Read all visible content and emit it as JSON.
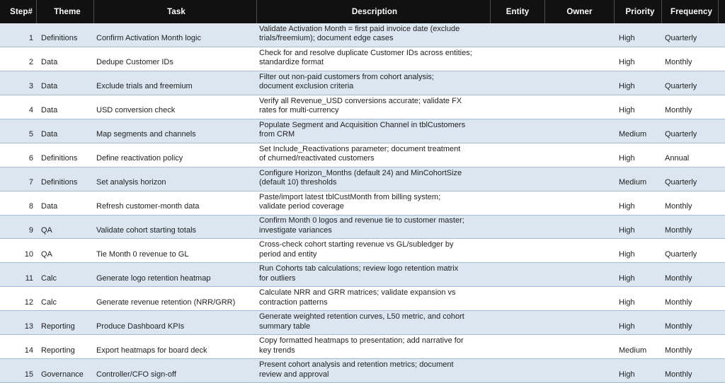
{
  "table": {
    "columns": [
      {
        "id": "step",
        "label": "Step#"
      },
      {
        "id": "theme",
        "label": "Theme"
      },
      {
        "id": "task",
        "label": "Task"
      },
      {
        "id": "description",
        "label": "Description"
      },
      {
        "id": "entity",
        "label": "Entity"
      },
      {
        "id": "owner",
        "label": "Owner"
      },
      {
        "id": "priority",
        "label": "Priority"
      },
      {
        "id": "frequency",
        "label": "Frequency"
      }
    ],
    "rows": [
      {
        "step": "1",
        "theme": "Definitions",
        "task": "Confirm Activation Month logic",
        "description": "Validate Activation Month = first paid invoice date (exclude\ntrials/freemium); document edge cases",
        "entity": "",
        "owner": "",
        "priority": "High",
        "frequency": "Quarterly"
      },
      {
        "step": "2",
        "theme": "Data",
        "task": "Dedupe Customer IDs",
        "description": "Check for and resolve duplicate Customer IDs across entities;\nstandardize format",
        "entity": "",
        "owner": "",
        "priority": "High",
        "frequency": "Monthly"
      },
      {
        "step": "3",
        "theme": "Data",
        "task": "Exclude trials and freemium",
        "description": "Filter out non-paid customers from cohort analysis;\ndocument exclusion criteria",
        "entity": "",
        "owner": "",
        "priority": "High",
        "frequency": "Quarterly"
      },
      {
        "step": "4",
        "theme": "Data",
        "task": "USD conversion check",
        "description": "Verify all Revenue_USD conversions accurate; validate FX\nrates for multi-currency",
        "entity": "",
        "owner": "",
        "priority": "High",
        "frequency": "Monthly"
      },
      {
        "step": "5",
        "theme": "Data",
        "task": "Map segments and channels",
        "description": "Populate Segment and Acquisition Channel in tblCustomers\nfrom CRM",
        "entity": "",
        "owner": "",
        "priority": "Medium",
        "frequency": "Quarterly"
      },
      {
        "step": "6",
        "theme": "Definitions",
        "task": "Define reactivation policy",
        "description": "Set Include_Reactivations parameter; document treatment\nof churned/reactivated customers",
        "entity": "",
        "owner": "",
        "priority": "High",
        "frequency": "Annual"
      },
      {
        "step": "7",
        "theme": "Definitions",
        "task": "Set analysis horizon",
        "description": "Configure Horizon_Months (default 24) and MinCohortSize\n(default 10) thresholds",
        "entity": "",
        "owner": "",
        "priority": "Medium",
        "frequency": "Quarterly"
      },
      {
        "step": "8",
        "theme": "Data",
        "task": "Refresh customer-month data",
        "description": "Paste/import latest tblCustMonth from billing system;\nvalidate period coverage",
        "entity": "",
        "owner": "",
        "priority": "High",
        "frequency": "Monthly"
      },
      {
        "step": "9",
        "theme": "QA",
        "task": "Validate cohort starting totals",
        "description": "Confirm Month 0 logos and revenue tie to customer master;\ninvestigate variances",
        "entity": "",
        "owner": "",
        "priority": "High",
        "frequency": "Monthly"
      },
      {
        "step": "10",
        "theme": "QA",
        "task": "Tie Month 0 revenue to GL",
        "description": "Cross-check cohort starting revenue vs GL/subledger by\nperiod and entity",
        "entity": "",
        "owner": "",
        "priority": "High",
        "frequency": "Quarterly"
      },
      {
        "step": "11",
        "theme": "Calc",
        "task": "Generate logo retention heatmap",
        "description": "Run Cohorts tab calculations; review logo retention matrix\nfor outliers",
        "entity": "",
        "owner": "",
        "priority": "High",
        "frequency": "Monthly"
      },
      {
        "step": "12",
        "theme": "Calc",
        "task": "Generate revenue retention (NRR/GRR)",
        "description": "Calculate NRR and GRR matrices; validate expansion vs\ncontraction patterns",
        "entity": "",
        "owner": "",
        "priority": "High",
        "frequency": "Monthly"
      },
      {
        "step": "13",
        "theme": "Reporting",
        "task": "Produce Dashboard KPIs",
        "description": "Generate weighted retention curves, L50 metric, and cohort\nsummary table",
        "entity": "",
        "owner": "",
        "priority": "High",
        "frequency": "Monthly"
      },
      {
        "step": "14",
        "theme": "Reporting",
        "task": "Export heatmaps for board deck",
        "description": "Copy formatted heatmaps to presentation; add narrative for\nkey trends",
        "entity": "",
        "owner": "",
        "priority": "Medium",
        "frequency": "Monthly"
      },
      {
        "step": "15",
        "theme": "Governance",
        "task": "Controller/CFO sign-off",
        "description": "Present cohort analysis and retention metrics; document\nreview and approval",
        "entity": "",
        "owner": "",
        "priority": "High",
        "frequency": "Monthly"
      }
    ]
  },
  "colors": {
    "header_bg": "#111111",
    "header_text": "#ffffff",
    "band_blue": "#dce6f1",
    "band_white": "#ffffff",
    "row_border": "#a6bad3",
    "body_text": "#1f1f1f"
  }
}
